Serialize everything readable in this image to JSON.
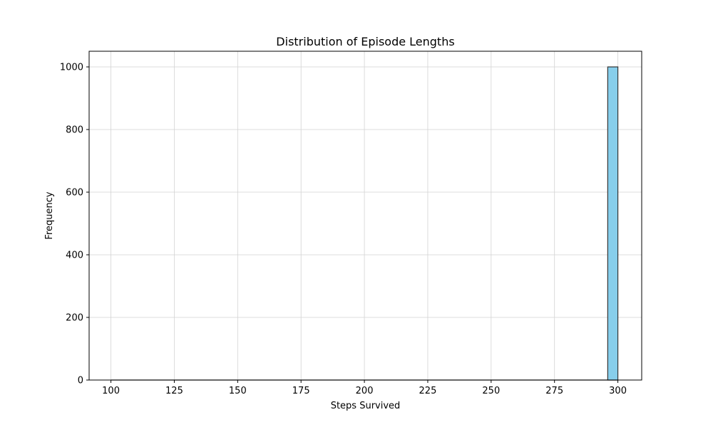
{
  "chart_data": {
    "type": "bar",
    "title": "Distribution of Episode Lengths",
    "xlabel": "Steps Survived",
    "ylabel": "Frequency",
    "xlim": [
      91.4,
      309.4
    ],
    "ylim": [
      0,
      1050
    ],
    "xticks": [
      100,
      125,
      150,
      175,
      200,
      225,
      250,
      275,
      300
    ],
    "yticks": [
      0,
      200,
      400,
      600,
      800,
      1000
    ],
    "grid": true,
    "bins": [
      {
        "x0": 296,
        "x1": 300,
        "count": 1000
      }
    ],
    "baseline": {
      "x0": 100,
      "x1": 300
    },
    "colors": {
      "bar_fill": "#87ceeb",
      "bar_edge": "#333333",
      "grid": "#d3d3d3",
      "axis": "#000000"
    }
  }
}
